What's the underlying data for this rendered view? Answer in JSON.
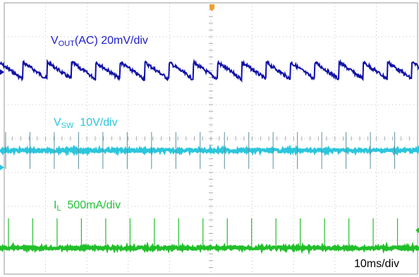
{
  "chart_data": {
    "type": "line",
    "title": "",
    "timebase": "10ms/div",
    "grid": true,
    "divisions": {
      "x": 10,
      "y": 8
    },
    "colors": {
      "vout": "#1010a8",
      "vsw": "#2cc6dc",
      "il": "#22bf2a",
      "trigger": "#f0a030"
    },
    "series": [
      {
        "id": "vout",
        "name": "VOUT(AC) 20mV/div",
        "label_main": "V",
        "label_sub": "OUT",
        "label_rest": "(AC) 20mV/div",
        "waveform": "sawtooth",
        "scale": "20mV/div",
        "periods_per_div": 1.7,
        "peak_to_peak_mV": 20
      },
      {
        "id": "vsw",
        "name": "VSW 10V/div",
        "label_main": "V",
        "label_sub": "SW",
        "label_rest": "  10V/div",
        "waveform": "pulse_train",
        "scale": "10V/div",
        "pulses_per_div": 1.7,
        "pulse_height_V": 10
      },
      {
        "id": "il",
        "name": "IL 500mA/div",
        "label_main": "I",
        "label_sub": "L",
        "label_rest": "  500mA/div",
        "waveform": "pulse_train",
        "scale": "500mA/div",
        "pulses_per_div": 1.7,
        "pulse_height_mA": 500
      }
    ]
  }
}
